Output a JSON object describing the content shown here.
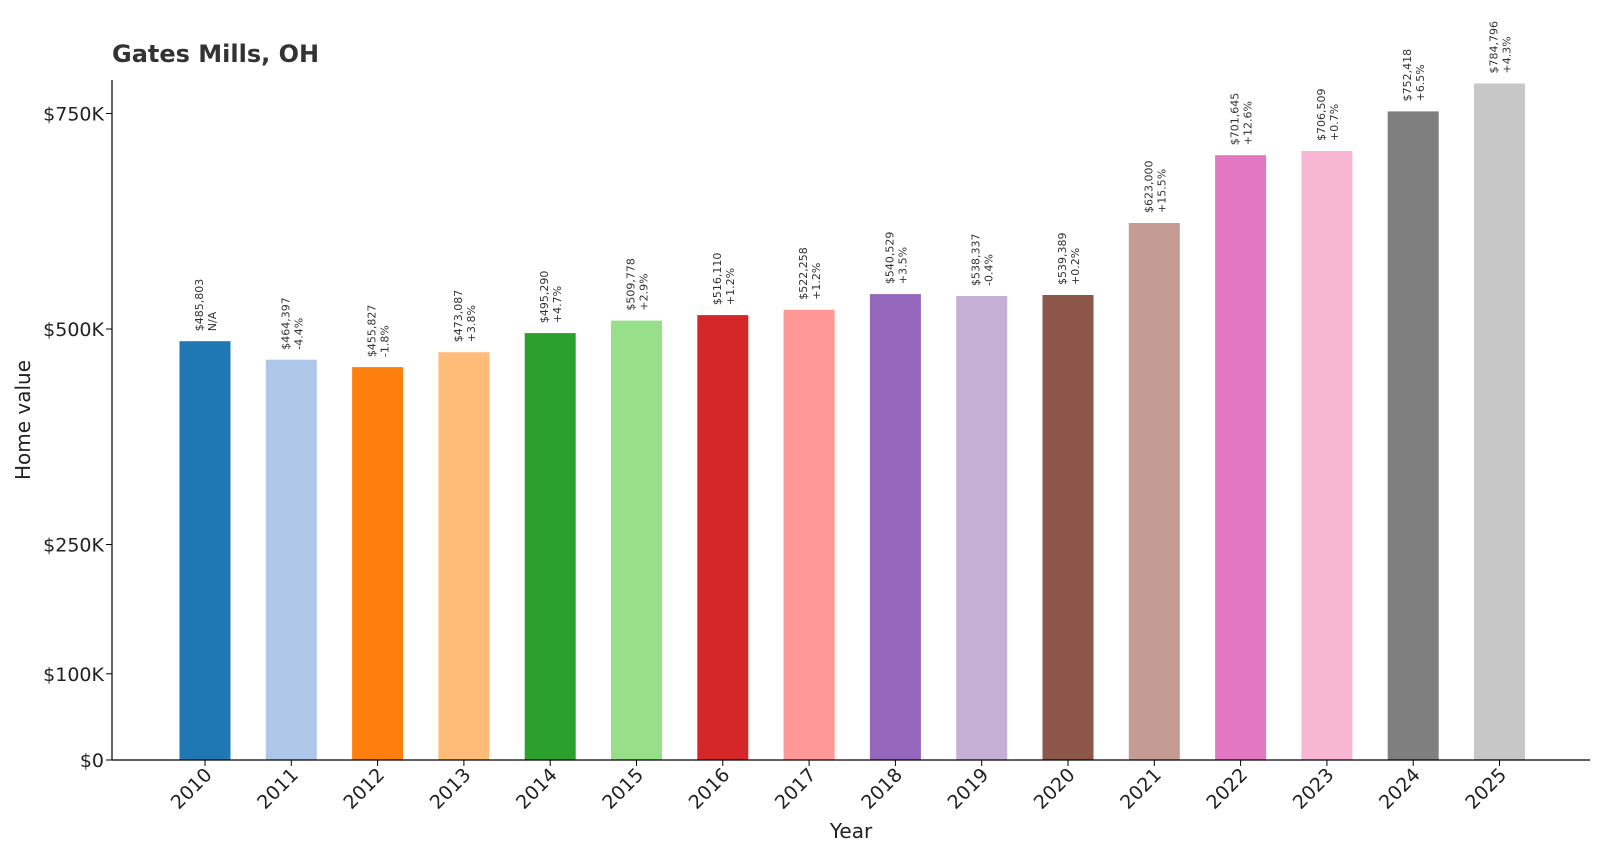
{
  "chart_data": {
    "type": "bar",
    "title": "Gates Mills, OH",
    "xlabel": "Year",
    "ylabel": "Home value",
    "ylim": [
      0,
      790000
    ],
    "yticks": [
      {
        "value": 0,
        "label": "$0"
      },
      {
        "value": 100000,
        "label": "$100K"
      },
      {
        "value": 250000,
        "label": "$250K"
      },
      {
        "value": 500000,
        "label": "$500K"
      },
      {
        "value": 750000,
        "label": "$750K"
      }
    ],
    "categories": [
      "2010",
      "2011",
      "2012",
      "2013",
      "2014",
      "2015",
      "2016",
      "2017",
      "2018",
      "2019",
      "2020",
      "2021",
      "2022",
      "2023",
      "2024",
      "2025"
    ],
    "values": [
      485803,
      464397,
      455827,
      473087,
      495290,
      509778,
      516110,
      522258,
      540529,
      538337,
      539389,
      623000,
      701645,
      706509,
      752418,
      784796
    ],
    "value_labels": [
      "$485,803",
      "$464,397",
      "$455,827",
      "$473,087",
      "$495,290",
      "$509,778",
      "$516,110",
      "$522,258",
      "$540,529",
      "$538,337",
      "$539,389",
      "$623,000",
      "$701,645",
      "$706,509",
      "$752,418",
      "$784,796"
    ],
    "change_labels": [
      "N/A",
      "-4.4%",
      "-1.8%",
      "+3.8%",
      "+4.7%",
      "+2.9%",
      "+1.2%",
      "+1.2%",
      "+3.5%",
      "-0.4%",
      "+0.2%",
      "+15.5%",
      "+12.6%",
      "+0.7%",
      "+6.5%",
      "+4.3%"
    ],
    "colors": [
      "#1f77b4",
      "#aec7e8",
      "#ff7f0e",
      "#ffbb78",
      "#2ca02c",
      "#98df8a",
      "#d62728",
      "#ff9896",
      "#9467bd",
      "#c5b0d5",
      "#8c564b",
      "#c49c94",
      "#e377c2",
      "#f7b6d2",
      "#7f7f7f",
      "#c7c7c7"
    ],
    "grid": false,
    "legend": "none"
  }
}
